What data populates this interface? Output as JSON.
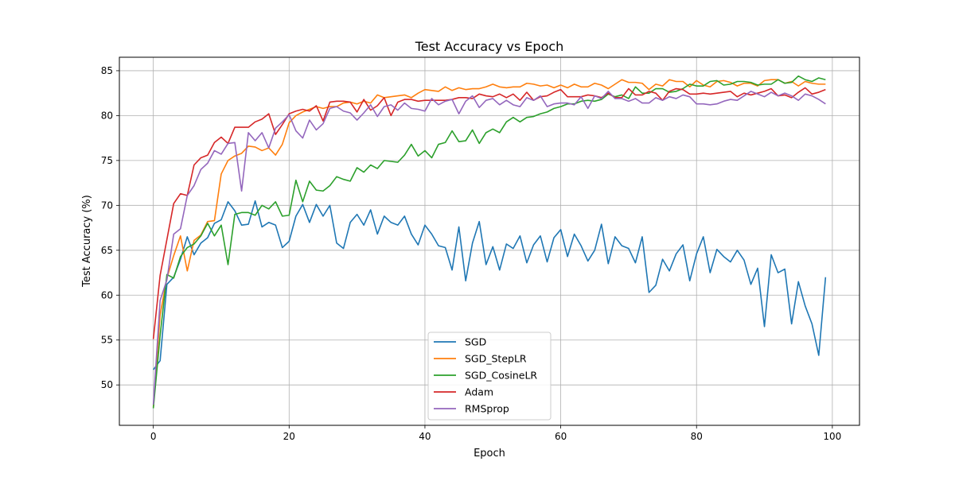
{
  "chart_data": {
    "type": "line",
    "title": "Test Accuracy vs Epoch",
    "xlabel": "Epoch",
    "ylabel": "Test Accuracy (%)",
    "xlim": [
      -5,
      104
    ],
    "ylim": [
      45.5,
      86.5
    ],
    "xticks": [
      0,
      20,
      40,
      60,
      80,
      100
    ],
    "yticks": [
      50,
      55,
      60,
      65,
      70,
      75,
      80,
      85
    ],
    "grid": true,
    "legend_position": "bottom-center",
    "x": [
      0,
      1,
      2,
      3,
      4,
      5,
      6,
      7,
      8,
      9,
      10,
      11,
      12,
      13,
      14,
      15,
      16,
      17,
      18,
      19,
      20,
      21,
      22,
      23,
      24,
      25,
      26,
      27,
      28,
      29,
      30,
      31,
      32,
      33,
      34,
      35,
      36,
      37,
      38,
      39,
      40,
      41,
      42,
      43,
      44,
      45,
      46,
      47,
      48,
      49,
      50,
      51,
      52,
      53,
      54,
      55,
      56,
      57,
      58,
      59,
      60,
      61,
      62,
      63,
      64,
      65,
      66,
      67,
      68,
      69,
      70,
      71,
      72,
      73,
      74,
      75,
      76,
      77,
      78,
      79,
      80,
      81,
      82,
      83,
      84,
      85,
      86,
      87,
      88,
      89,
      90,
      91,
      92,
      93,
      94,
      95,
      96,
      97,
      98,
      99
    ],
    "series": [
      {
        "name": "SGD",
        "color": "#1f77b4",
        "values": [
          51.7,
          52.7,
          61.2,
          62.0,
          64.0,
          66.5,
          64.5,
          65.8,
          66.4,
          68.0,
          68.4,
          70.4,
          69.4,
          67.8,
          67.9,
          70.5,
          67.6,
          68.1,
          67.8,
          65.3,
          66.0,
          68.8,
          70.1,
          68.1,
          70.1,
          68.8,
          70.0,
          65.8,
          65.2,
          68.1,
          69.0,
          67.8,
          69.5,
          66.8,
          68.8,
          68.1,
          67.8,
          68.8,
          66.8,
          65.6,
          67.8,
          66.8,
          65.5,
          65.3,
          62.8,
          67.6,
          61.6,
          65.8,
          68.2,
          63.4,
          65.4,
          62.8,
          65.7,
          65.2,
          66.6,
          63.6,
          65.6,
          66.6,
          63.7,
          66.4,
          67.3,
          64.3,
          66.8,
          65.5,
          63.8,
          65.0,
          67.9,
          63.5,
          66.5,
          65.5,
          65.2,
          63.6,
          66.5,
          60.3,
          61.1,
          64.0,
          62.7,
          64.6,
          65.6,
          61.6,
          64.6,
          66.5,
          62.5,
          65.1,
          64.3,
          63.7,
          65.0,
          63.9,
          61.2,
          63.0,
          56.5,
          64.5,
          62.5,
          62.9,
          56.8,
          61.5,
          58.8,
          56.8,
          53.3,
          62.0
        ]
      },
      {
        "name": "SGD_StepLR",
        "color": "#ff7f0e",
        "values": [
          47.5,
          57.8,
          61.9,
          64.4,
          66.6,
          62.7,
          66.1,
          66.7,
          68.2,
          68.3,
          73.5,
          75.0,
          75.5,
          75.8,
          76.6,
          76.5,
          76.1,
          76.4,
          75.6,
          76.8,
          79.2,
          80.0,
          80.4,
          80.7,
          81.0,
          80.8,
          81.0,
          81.0,
          81.4,
          81.5,
          81.3,
          81.6,
          81.4,
          82.3,
          82.0,
          82.1,
          82.2,
          82.3,
          82.0,
          82.5,
          82.9,
          82.8,
          82.7,
          83.2,
          82.8,
          83.1,
          82.9,
          83.0,
          83.0,
          83.2,
          83.5,
          83.2,
          83.1,
          83.2,
          83.2,
          83.6,
          83.5,
          83.3,
          83.4,
          83.1,
          83.4,
          83.1,
          83.5,
          83.2,
          83.2,
          83.6,
          83.4,
          83.0,
          83.5,
          84.0,
          83.7,
          83.7,
          83.6,
          82.9,
          83.5,
          83.3,
          84.0,
          83.8,
          83.8,
          83.2,
          83.9,
          83.4,
          83.2,
          83.8,
          83.9,
          83.7,
          83.3,
          83.6,
          83.6,
          83.3,
          83.9,
          84.0,
          84.0,
          83.6,
          83.8,
          83.3,
          83.8,
          83.6,
          83.5,
          83.5
        ]
      },
      {
        "name": "SGD_CosineLR",
        "color": "#2ca02c",
        "values": [
          47.4,
          55.5,
          62.3,
          61.9,
          64.3,
          65.3,
          65.7,
          66.6,
          68.0,
          66.6,
          67.8,
          63.4,
          69.0,
          69.2,
          69.2,
          68.9,
          70.0,
          69.6,
          70.4,
          68.8,
          68.9,
          72.8,
          70.4,
          72.7,
          71.7,
          71.6,
          72.2,
          73.2,
          72.9,
          72.7,
          74.2,
          73.7,
          74.5,
          74.1,
          75.0,
          74.9,
          74.8,
          75.6,
          76.8,
          75.5,
          76.1,
          75.3,
          76.8,
          77.0,
          78.3,
          77.1,
          77.2,
          78.4,
          76.9,
          78.1,
          78.5,
          78.1,
          79.3,
          79.8,
          79.3,
          79.8,
          79.9,
          80.2,
          80.4,
          80.8,
          81.0,
          81.3,
          81.3,
          81.6,
          81.7,
          81.6,
          81.8,
          82.4,
          82.1,
          82.3,
          81.9,
          83.2,
          82.5,
          82.5,
          83.0,
          83.0,
          82.6,
          82.7,
          83.0,
          83.5,
          83.3,
          83.3,
          83.8,
          83.9,
          83.4,
          83.5,
          83.8,
          83.8,
          83.7,
          83.4,
          83.5,
          83.5,
          84.0,
          83.6,
          83.7,
          84.4,
          84.0,
          83.8,
          84.2,
          84.0
        ]
      },
      {
        "name": "Adam",
        "color": "#d62728",
        "values": [
          55.1,
          62.2,
          66.2,
          70.2,
          71.3,
          71.1,
          74.5,
          75.3,
          75.6,
          77.0,
          77.6,
          76.9,
          78.7,
          78.7,
          78.7,
          79.3,
          79.6,
          80.2,
          77.9,
          79.0,
          80.2,
          80.5,
          80.7,
          80.5,
          81.1,
          79.4,
          81.5,
          81.6,
          81.6,
          81.5,
          80.4,
          81.8,
          80.6,
          81.1,
          82.0,
          80.0,
          81.5,
          81.8,
          81.8,
          81.6,
          81.7,
          81.7,
          81.7,
          81.7,
          81.8,
          82.0,
          82.0,
          81.9,
          82.4,
          82.2,
          82.1,
          82.4,
          82.0,
          82.4,
          81.7,
          82.6,
          81.7,
          82.1,
          82.2,
          82.6,
          82.9,
          82.1,
          82.1,
          82.1,
          82.3,
          82.2,
          82.0,
          82.5,
          82.0,
          82.0,
          83.0,
          82.3,
          82.3,
          82.7,
          82.5,
          81.7,
          82.7,
          83.0,
          82.9,
          82.4,
          82.4,
          82.5,
          82.4,
          82.5,
          82.6,
          82.7,
          82.1,
          82.5,
          82.3,
          82.5,
          82.7,
          83.0,
          82.2,
          82.3,
          82.0,
          82.6,
          83.1,
          82.4,
          82.6,
          82.9
        ]
      },
      {
        "name": "RMSprop",
        "color": "#9467bd",
        "values": [
          47.8,
          59.4,
          61.7,
          66.8,
          67.4,
          71.1,
          72.2,
          74.0,
          74.7,
          76.1,
          75.7,
          76.9,
          77.0,
          71.6,
          78.1,
          77.2,
          78.1,
          76.4,
          78.6,
          79.3,
          80.1,
          78.3,
          77.5,
          79.5,
          78.4,
          79.1,
          80.8,
          81.0,
          80.5,
          80.3,
          79.5,
          80.3,
          81.2,
          79.9,
          81.0,
          81.2,
          80.6,
          81.4,
          80.8,
          80.7,
          80.5,
          81.9,
          81.2,
          81.6,
          81.8,
          80.2,
          81.6,
          82.2,
          80.9,
          81.7,
          81.9,
          81.2,
          81.7,
          81.2,
          81.0,
          82.0,
          81.7,
          82.2,
          81.0,
          81.3,
          81.4,
          81.4,
          81.2,
          82.1,
          80.8,
          82.2,
          81.9,
          82.7,
          81.9,
          81.9,
          81.6,
          81.9,
          81.4,
          81.4,
          82.0,
          81.7,
          82.1,
          81.9,
          82.3,
          82.1,
          81.3,
          81.3,
          81.2,
          81.3,
          81.6,
          81.8,
          81.7,
          82.2,
          82.7,
          82.4,
          82.1,
          82.6,
          82.2,
          82.5,
          82.2,
          81.7,
          82.4,
          82.2,
          81.8,
          81.3
        ]
      }
    ]
  }
}
